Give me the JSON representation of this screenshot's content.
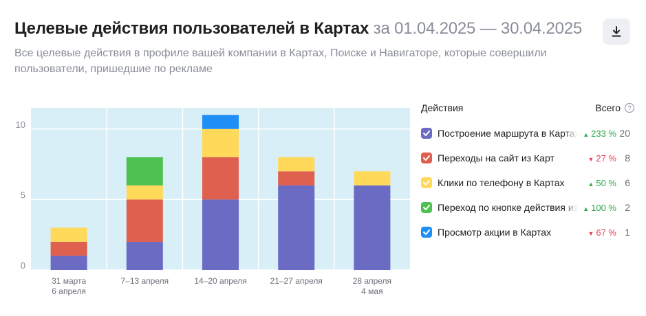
{
  "header": {
    "title": "Целевые действия пользователей в Картах",
    "period": "за 01.04.2025 — 30.04.2025",
    "subtitle": "Все целевые действия в профиле вашей компании в Картах, Поиске и Навигаторе, которые совершили пользователи, пришедшие по рекламе"
  },
  "download_icon": "download-icon",
  "legend": {
    "title": "Действия",
    "total_label": "Всего",
    "help_icon": "question-circle-icon",
    "items": [
      {
        "label": "Построение маршрута в Картах",
        "arrow": "▲",
        "change": "233 %",
        "trend": "up",
        "total": "20",
        "color": "#6b6bc4"
      },
      {
        "label": "Переходы на сайт из Карт",
        "arrow": "▼",
        "change": "27 %",
        "trend": "down",
        "total": "8",
        "color": "#e06050"
      },
      {
        "label": "Клики по телефону в Картах",
        "arrow": "▲",
        "change": "50 %",
        "trend": "up",
        "total": "6",
        "color": "#ffd95a"
      },
      {
        "label": "Переход по кнопке действия из Карт",
        "arrow": "▲",
        "change": "100 %",
        "trend": "up",
        "total": "2",
        "color": "#4fc052"
      },
      {
        "label": "Просмотр акции в Картах",
        "arrow": "▼",
        "change": "67 %",
        "trend": "down",
        "total": "1",
        "color": "#1f8ef5"
      }
    ]
  },
  "chart_data": {
    "type": "bar",
    "stacked": true,
    "categories": [
      [
        "31 марта",
        "6 апреля"
      ],
      [
        "7–13 апреля"
      ],
      [
        "14–20 апреля"
      ],
      [
        "21–27 апреля"
      ],
      [
        "28 апреля",
        "4 мая"
      ]
    ],
    "series": [
      {
        "name": "Построение маршрута в Картах",
        "color": "#6b6bc4",
        "values": [
          1,
          2,
          5,
          6,
          6
        ]
      },
      {
        "name": "Переходы на сайт из Карт",
        "color": "#e06050",
        "values": [
          1,
          3,
          3,
          1,
          0
        ]
      },
      {
        "name": "Клики по телефону в Картах",
        "color": "#ffd95a",
        "values": [
          1,
          1,
          2,
          1,
          1
        ]
      },
      {
        "name": "Переход по кнопке действия из Карт",
        "color": "#4fc052",
        "values": [
          0,
          2,
          0,
          0,
          0
        ]
      },
      {
        "name": "Просмотр акции в Картах",
        "color": "#1f8ef5",
        "values": [
          0,
          0,
          1,
          0,
          0
        ]
      }
    ],
    "yticks": [
      0,
      5,
      10
    ],
    "ylim": [
      0,
      11.5
    ],
    "grid": true,
    "plot_background": "#d8eff8"
  }
}
